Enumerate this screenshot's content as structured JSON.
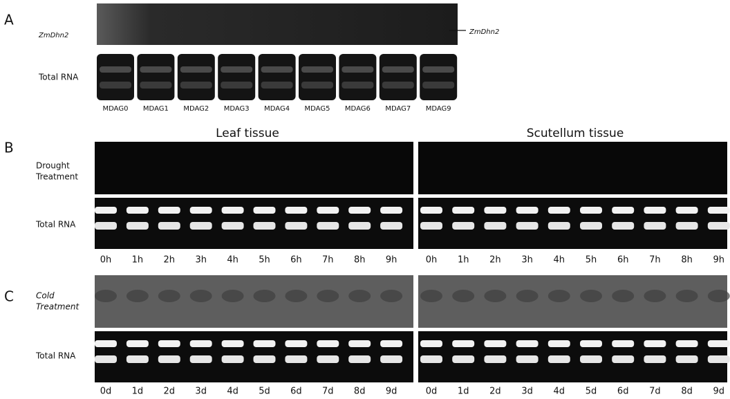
{
  "panel_a": {
    "letter": "A",
    "probe_label": "ZmDhn2",
    "arrow_label": "ZmDhn2",
    "rna_label": "Total RNA",
    "lanes": [
      "MDAG0",
      "MDAG1",
      "MDAG2",
      "MDAG3",
      "MDAG4",
      "MDAG5",
      "MDAG6",
      "MDAG7",
      "MDAG9"
    ]
  },
  "panel_b": {
    "letter": "B",
    "leaf_title": "Leaf tissue",
    "scutellum_title": "Scutellum tissue",
    "treatment_label": [
      "Drought",
      "Treatment"
    ],
    "rna_label": "Total RNA",
    "leaf_lanes": [
      "0h",
      "1h",
      "2h",
      "3h",
      "4h",
      "5h",
      "6h",
      "7h",
      "8h",
      "9h"
    ],
    "scutellum_lanes": [
      "0h",
      "1h",
      "2h",
      "3h",
      "4h",
      "5h",
      "6h",
      "7h",
      "8h",
      "9h"
    ]
  },
  "panel_c": {
    "letter": "C",
    "treatment_label": [
      "Cold",
      "Treatment"
    ],
    "rna_label": "Total RNA",
    "leaf_lanes": [
      "0d",
      "1d",
      "2d",
      "3d",
      "4d",
      "5d",
      "6d",
      "7d",
      "8d",
      "9d"
    ],
    "scutellum_lanes": [
      "0d",
      "1d",
      "2d",
      "3d",
      "4d",
      "5d",
      "6d",
      "7d",
      "8d",
      "9d"
    ]
  }
}
